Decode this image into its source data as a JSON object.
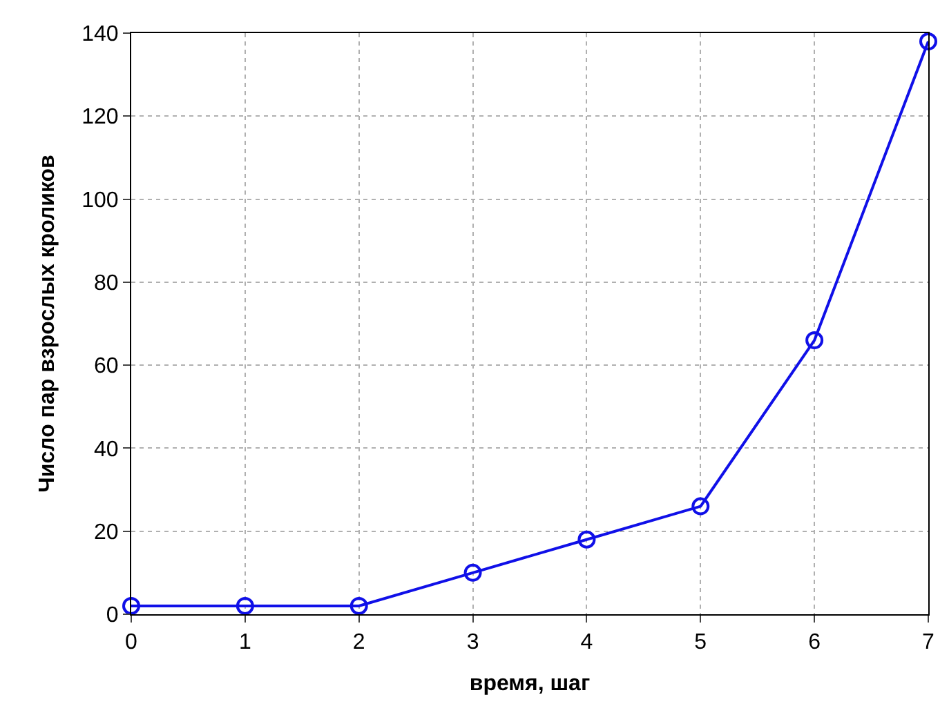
{
  "chart_data": {
    "type": "line",
    "xlabel": "время, шаг",
    "ylabel": "Число пар взрослых кроликов",
    "x": [
      0,
      1,
      2,
      3,
      4,
      5,
      6,
      7
    ],
    "series": [
      {
        "color": "#1010e8",
        "values": [
          2,
          2,
          2,
          10,
          18,
          26,
          66,
          138
        ]
      }
    ],
    "xlim": [
      0,
      7
    ],
    "xticks": [
      0,
      1,
      2,
      3,
      4,
      5,
      6,
      7
    ],
    "ylim": [
      0,
      140
    ],
    "yticks": [
      0,
      20,
      40,
      60,
      80,
      100,
      120,
      140
    ],
    "grid": true,
    "marker": "circle",
    "line_style": "solid",
    "legend": false
  }
}
